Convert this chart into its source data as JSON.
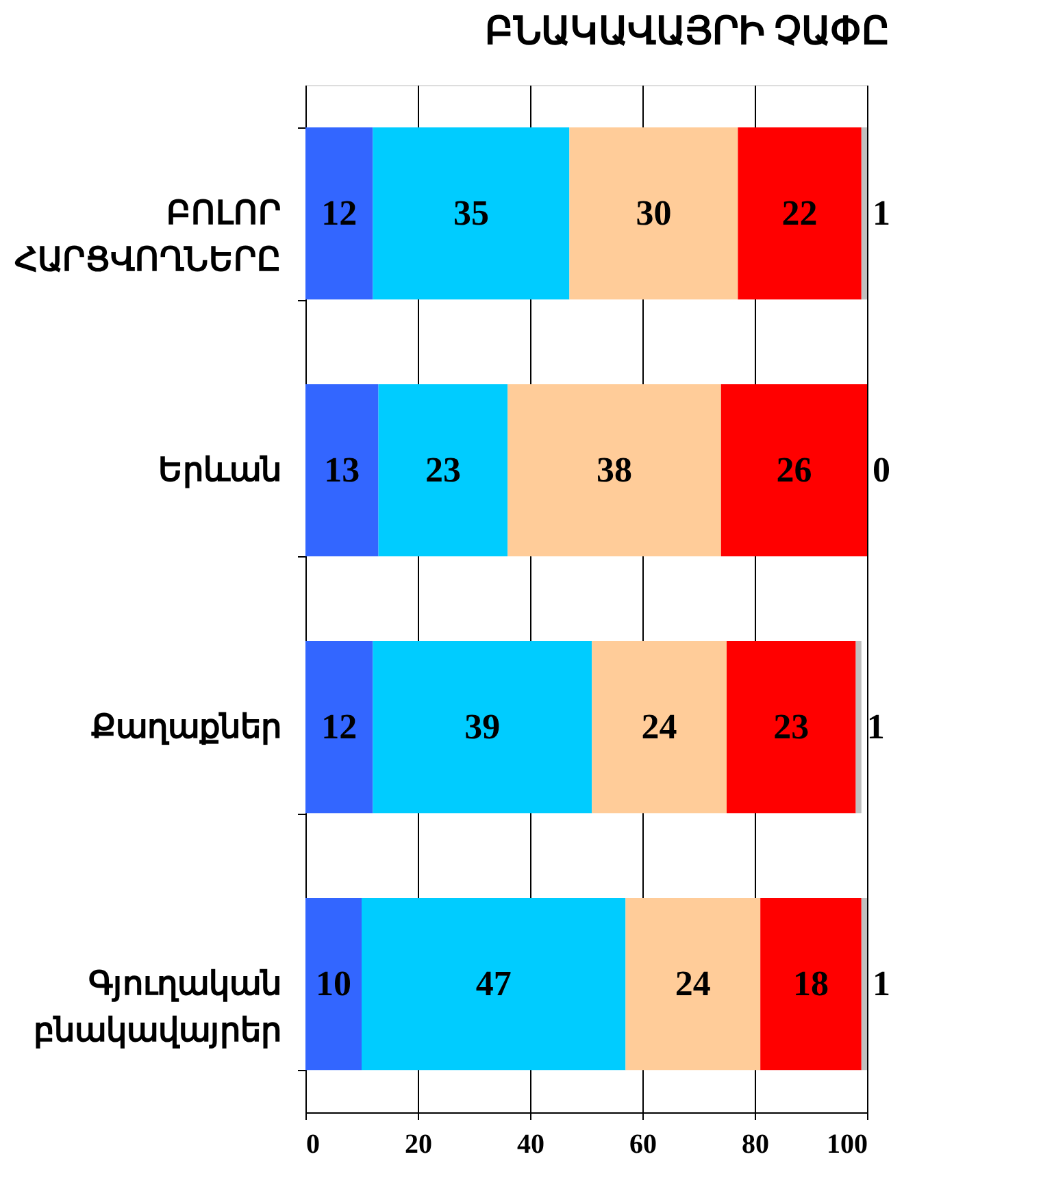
{
  "chart_data": {
    "type": "bar",
    "orientation": "horizontal",
    "stacked": true,
    "title": "ԲՆԱԿԱՎԱՅՐԻ ՉԱՓԸ",
    "categories": [
      "ԲՈԼՈՐ\nՀԱՐՑՎՈՂՆԵՐԸ",
      "Երևան",
      "Քաղաքներ",
      "Գյուղական\nբնակավայրեր"
    ],
    "series": [
      {
        "color": "#3366ff",
        "values": [
          12,
          13,
          12,
          10
        ]
      },
      {
        "color": "#00ccff",
        "values": [
          35,
          23,
          39,
          47
        ]
      },
      {
        "color": "#ffcc99",
        "values": [
          30,
          38,
          24,
          24
        ]
      },
      {
        "color": "#ff0000",
        "values": [
          22,
          26,
          23,
          18
        ]
      },
      {
        "color": "#c0c0c0",
        "values": [
          1,
          0,
          1,
          1
        ]
      }
    ],
    "xlim": [
      0,
      100
    ],
    "xticks": [
      0,
      20,
      40,
      60,
      80,
      100
    ],
    "grid": "x",
    "legend": false,
    "data_labels": true
  }
}
